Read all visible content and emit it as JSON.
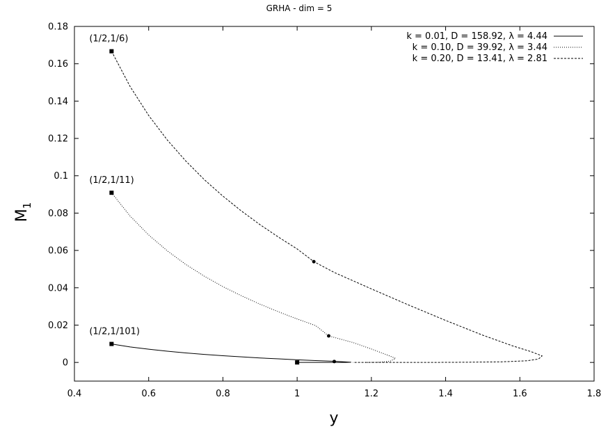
{
  "chart_data": {
    "type": "line",
    "title": "GRHA - dim = 5",
    "xlabel": "y",
    "ylabel": "M",
    "ylabel_sub": "1",
    "xlim": [
      0.4,
      1.8
    ],
    "ylim": [
      -0.01,
      0.18
    ],
    "xticks": [
      0.4,
      0.6,
      0.8,
      1.0,
      1.2,
      1.4,
      1.6,
      1.8
    ],
    "xtick_labels": [
      "0.4",
      "0.6",
      "0.8",
      "1",
      "1.2",
      "1.4",
      "1.6",
      "1.8"
    ],
    "yticks": [
      0,
      0.02,
      0.04,
      0.06,
      0.08,
      0.1,
      0.12,
      0.14,
      0.16,
      0.18
    ],
    "ytick_labels": [
      "0",
      "0.02",
      "0.04",
      "0.06",
      "0.08",
      "0.1",
      "0.12",
      "0.14",
      "0.16",
      "0.18"
    ],
    "grid": false,
    "legend_position": "top-right",
    "series": [
      {
        "name": "k = 0.01, D = 158.92, λ = 4.44",
        "style": "solid",
        "start": [
          0.5,
          0.0099
        ],
        "points": [
          [
            0.5,
            0.0099
          ],
          [
            0.55,
            0.0083
          ],
          [
            0.6,
            0.0071
          ],
          [
            0.65,
            0.006
          ],
          [
            0.7,
            0.0051
          ],
          [
            0.75,
            0.0043
          ],
          [
            0.8,
            0.0036
          ],
          [
            0.85,
            0.003
          ],
          [
            0.9,
            0.0024
          ],
          [
            0.95,
            0.0019
          ],
          [
            1.0,
            0.0014
          ],
          [
            1.05,
            0.001
          ],
          [
            1.1,
            0.0006
          ],
          [
            1.13,
            0.0003
          ],
          [
            1.145,
            0.0001
          ],
          [
            1.13,
            0.0
          ],
          [
            1.1,
            0.0
          ],
          [
            1.05,
            0.0
          ],
          [
            1.0,
            0.0
          ]
        ],
        "marker_points": [
          [
            1.1,
            0.0005
          ]
        ],
        "end_marker": [
          1.0,
          0.0
        ]
      },
      {
        "name": "k = 0.10, D =  39.92, λ = 3.44",
        "style": "dotted",
        "start": [
          0.5,
          0.0909
        ],
        "points": [
          [
            0.5,
            0.0909
          ],
          [
            0.55,
            0.0784
          ],
          [
            0.6,
            0.0683
          ],
          [
            0.65,
            0.0598
          ],
          [
            0.7,
            0.0525
          ],
          [
            0.75,
            0.0462
          ],
          [
            0.8,
            0.0406
          ],
          [
            0.85,
            0.0357
          ],
          [
            0.9,
            0.0312
          ],
          [
            0.95,
            0.0271
          ],
          [
            1.0,
            0.0233
          ],
          [
            1.05,
            0.0197
          ],
          [
            1.085,
            0.0142
          ],
          [
            1.15,
            0.0107
          ],
          [
            1.2,
            0.0072
          ],
          [
            1.24,
            0.0042
          ],
          [
            1.265,
            0.0022
          ],
          [
            1.25,
            0.0006
          ],
          [
            1.22,
            0.0001
          ],
          [
            1.18,
            0.0
          ]
        ],
        "marker_points": [
          [
            1.085,
            0.0142
          ]
        ]
      },
      {
        "name": "k = 0.20, D =  13.41, λ = 2.81",
        "style": "dashed",
        "start": [
          0.5,
          0.1667
        ],
        "points": [
          [
            0.5,
            0.1667
          ],
          [
            0.55,
            0.1478
          ],
          [
            0.6,
            0.1323
          ],
          [
            0.65,
            0.1192
          ],
          [
            0.7,
            0.1079
          ],
          [
            0.75,
            0.0979
          ],
          [
            0.8,
            0.0891
          ],
          [
            0.85,
            0.0811
          ],
          [
            0.9,
            0.0738
          ],
          [
            0.95,
            0.0671
          ],
          [
            1.0,
            0.0608
          ],
          [
            1.045,
            0.054
          ],
          [
            1.1,
            0.0482
          ],
          [
            1.2,
            0.0394
          ],
          [
            1.3,
            0.0308
          ],
          [
            1.4,
            0.0225
          ],
          [
            1.5,
            0.0146
          ],
          [
            1.58,
            0.0089
          ],
          [
            1.63,
            0.0058
          ],
          [
            1.66,
            0.0035
          ],
          [
            1.65,
            0.0018
          ],
          [
            1.62,
            0.0009
          ],
          [
            1.55,
            0.0003
          ],
          [
            1.45,
            0.0001
          ],
          [
            1.35,
            0.0
          ],
          [
            1.25,
            0.0
          ],
          [
            1.15,
            0.0
          ]
        ],
        "marker_points": [
          [
            1.045,
            0.054
          ]
        ]
      }
    ],
    "annotations": [
      {
        "text": "(1/2,1/6)",
        "x": 0.5,
        "y": 0.1667
      },
      {
        "text": "(1/2,1/11)",
        "x": 0.5,
        "y": 0.0909
      },
      {
        "text": "(1/2,1/101)",
        "x": 0.5,
        "y": 0.0099
      }
    ]
  }
}
